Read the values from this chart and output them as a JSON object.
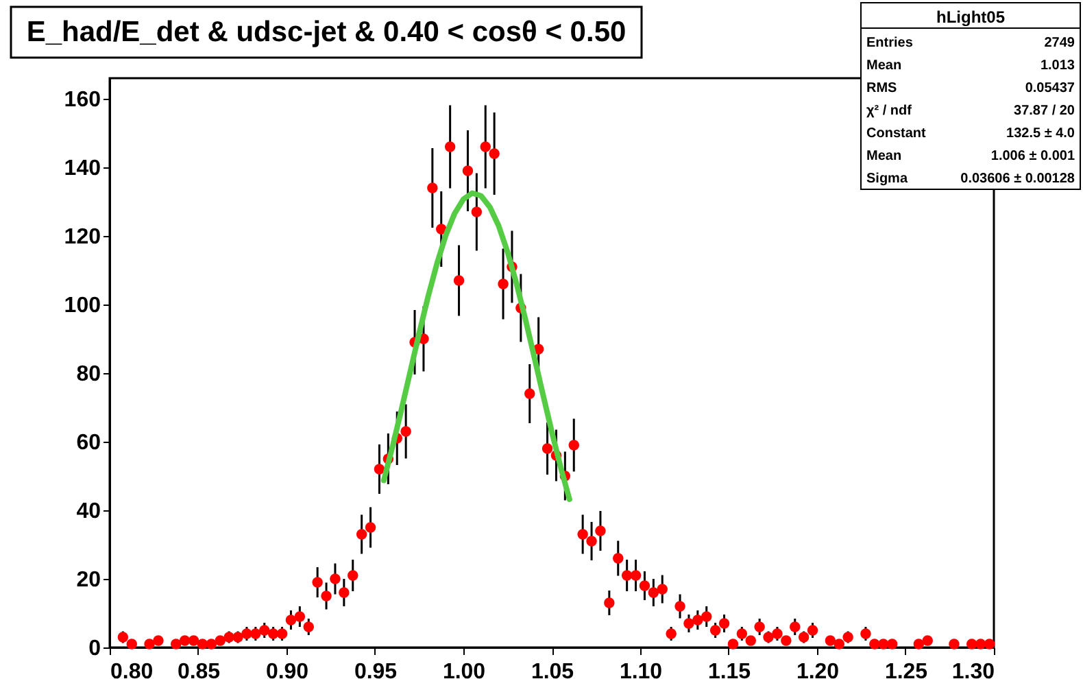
{
  "chart_data": {
    "type": "scatter",
    "title": "E_had/E_det & udsc-jet & 0.40 < cosθ < 0.50",
    "annotations": [
      "hLight05",
      "Entries  2749",
      "Mean  1.013",
      "RMS  0.05437",
      "χ² / ndf  37.87 / 20",
      "Constant  132.5 ± 4.0",
      "Mean  1.006 ± 0.001",
      "Sigma  0.03606 ± 0.00128"
    ],
    "xlim": [
      0.8,
      1.3
    ],
    "xticks": [
      {
        "value": 0.8,
        "label": "0.80"
      },
      0.85,
      {
        "value": 0.9,
        "label": "0.90"
      },
      0.95,
      {
        "value": 1.0,
        "label": "1.00"
      },
      1.05,
      {
        "value": 1.1,
        "label": "1.10"
      },
      1.15,
      {
        "value": 1.2,
        "label": "1.20"
      },
      1.25,
      {
        "value": 1.3,
        "label": "1.30"
      }
    ],
    "ylim": [
      0,
      166
    ],
    "yticks": [
      0,
      20,
      40,
      60,
      80,
      100,
      120,
      140,
      160
    ],
    "grid": false,
    "series": [
      {
        "color": "#ff0000",
        "marker": "circle",
        "x": [
          0.8075,
          0.8125,
          0.8225,
          0.8275,
          0.8375,
          0.8425,
          0.8475,
          0.8525,
          0.8575,
          0.8625,
          0.8675,
          0.8725,
          0.8775,
          0.8825,
          0.8875,
          0.8925,
          0.8975,
          0.9025,
          0.9075,
          0.9125,
          0.9175,
          0.9225,
          0.9275,
          0.9325,
          0.9375,
          0.9425,
          0.9475,
          0.9525,
          0.9575,
          0.9625,
          0.9675,
          0.9725,
          0.9775,
          0.9825,
          0.9875,
          0.9925,
          0.9975,
          1.0025,
          1.0075,
          1.0125,
          1.0175,
          1.0225,
          1.0275,
          1.0325,
          1.0375,
          1.0425,
          1.0475,
          1.0525,
          1.0575,
          1.0625,
          1.0675,
          1.0725,
          1.0775,
          1.0825,
          1.0875,
          1.0925,
          1.0975,
          1.1025,
          1.1075,
          1.1125,
          1.1175,
          1.1225,
          1.1275,
          1.1325,
          1.1375,
          1.1425,
          1.1475,
          1.1525,
          1.1575,
          1.1625,
          1.1675,
          1.1725,
          1.1775,
          1.1825,
          1.1875,
          1.1925,
          1.1975,
          1.2075,
          1.2125,
          1.2175,
          1.2275,
          1.2325,
          1.2375,
          1.2425,
          1.2575,
          1.2625,
          1.2775,
          1.2875,
          1.2925,
          1.2975
        ],
        "values": [
          3,
          1,
          1,
          2,
          1,
          2,
          2,
          1,
          1,
          2,
          3,
          3,
          4,
          4,
          5,
          4,
          4,
          8,
          9,
          6,
          19,
          15,
          20,
          16,
          21,
          33,
          35,
          52,
          55,
          61,
          63,
          89,
          90,
          134,
          122,
          146,
          107,
          139,
          127,
          146,
          144,
          106,
          111,
          99,
          74,
          87,
          58,
          56,
          50,
          59,
          33,
          31,
          34,
          13,
          26,
          21,
          21,
          18,
          16,
          17,
          4,
          12,
          7,
          8,
          9,
          5,
          7,
          1,
          4,
          2,
          6,
          3,
          4,
          2,
          6,
          3,
          5,
          2,
          1,
          3,
          4,
          1,
          1,
          1,
          1,
          2,
          1,
          1,
          1,
          1
        ],
        "errors": [
          1.7,
          null,
          null,
          1.4,
          null,
          1.4,
          1.4,
          null,
          null,
          1.4,
          1.7,
          1.7,
          2,
          2,
          2.2,
          2,
          2,
          2.8,
          3,
          2.4,
          4.4,
          3.9,
          4.5,
          4,
          4.6,
          5.7,
          5.9,
          7.2,
          7.4,
          7.8,
          7.9,
          9.4,
          9.5,
          11.6,
          11,
          12.1,
          10.3,
          11.8,
          11.3,
          12.1,
          12,
          10.3,
          10.5,
          9.9,
          8.6,
          9.3,
          7.6,
          7.5,
          7.1,
          7.7,
          5.7,
          5.6,
          5.8,
          3.6,
          5.1,
          4.6,
          4.6,
          4.2,
          4,
          4.1,
          2,
          3.5,
          2.6,
          2.8,
          3,
          2.2,
          2.6,
          null,
          2,
          1.4,
          2.4,
          1.7,
          2,
          1.4,
          2.4,
          1.7,
          2.2,
          1.4,
          null,
          1.7,
          2,
          null,
          null,
          null,
          null,
          1.4,
          null,
          null,
          null,
          null
        ]
      },
      {
        "type": "line",
        "color": "#55cc44",
        "marker": "none",
        "line_style": "solid",
        "x": [
          0.955,
          0.96,
          0.965,
          0.97,
          0.975,
          0.98,
          0.985,
          0.99,
          0.995,
          1.0,
          1.005,
          1.01,
          1.015,
          1.02,
          1.025,
          1.03,
          1.035,
          1.04,
          1.045,
          1.05,
          1.055,
          1.06
        ],
        "values": [
          48.7,
          58.7,
          69.4,
          80.5,
          91.6,
          102.2,
          111.8,
          120.1,
          126.5,
          130.7,
          132.5,
          131.7,
          128.4,
          122.9,
          115.3,
          106.2,
          95.9,
          84.9,
          73.8,
          62.9,
          52.6,
          43.2
        ]
      }
    ]
  }
}
